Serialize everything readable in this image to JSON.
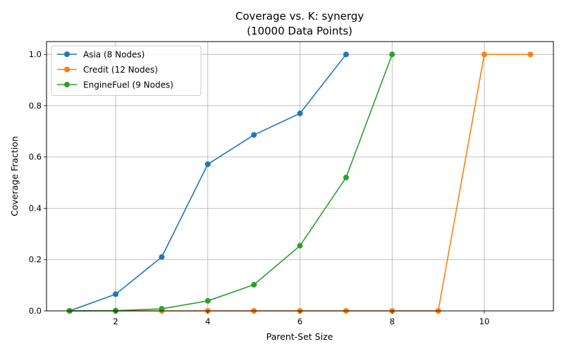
{
  "chart_data": {
    "type": "line",
    "title": "Coverage vs. K: synergy",
    "subtitle": "(10000 Data Points)",
    "xlabel": "Parent-Set Size",
    "ylabel": "Coverage Fraction",
    "xlim": [
      0.5,
      11.5
    ],
    "ylim": [
      0,
      1.05
    ],
    "xticks": [
      2,
      4,
      6,
      8,
      10
    ],
    "yticks": [
      0.0,
      0.2,
      0.4,
      0.6,
      0.8,
      1.0
    ],
    "xtick_labels": [
      "2",
      "4",
      "6",
      "8",
      "10"
    ],
    "ytick_labels": [
      "0.0",
      "0.2",
      "0.4",
      "0.6",
      "0.8",
      "1.0"
    ],
    "grid": true,
    "legend_position": "upper-left",
    "series": [
      {
        "name": "Asia (8 Nodes)",
        "color": "#1f77b4",
        "x": [
          1,
          2,
          3,
          4,
          5,
          6,
          7
        ],
        "y": [
          0.0,
          0.065,
          0.21,
          0.572,
          0.686,
          0.77,
          1.0
        ]
      },
      {
        "name": "Credit (12 Nodes)",
        "color": "#ff7f0e",
        "x": [
          1,
          2,
          3,
          4,
          5,
          6,
          7,
          8,
          9,
          10,
          11
        ],
        "y": [
          0.0,
          0.0,
          0.0,
          0.0,
          0.0,
          0.0,
          0.0,
          0.0,
          0.0,
          1.0,
          1.0
        ]
      },
      {
        "name": "EngineFuel (9 Nodes)",
        "color": "#2ca02c",
        "x": [
          1,
          2,
          3,
          4,
          5,
          6,
          7,
          8
        ],
        "y": [
          0.0,
          0.001,
          0.008,
          0.039,
          0.102,
          0.254,
          0.52,
          1.0
        ]
      }
    ]
  }
}
